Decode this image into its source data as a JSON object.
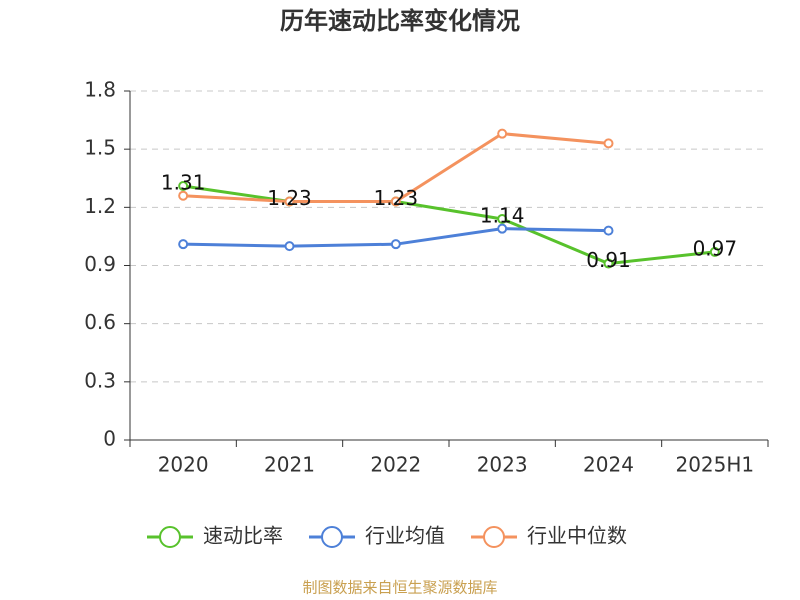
{
  "chart_data": {
    "type": "line",
    "title": "历年速动比率变化情况",
    "categories": [
      "2020",
      "2021",
      "2022",
      "2023",
      "2024",
      "2025H1"
    ],
    "series": [
      {
        "name": "速动比率",
        "color": "#58c22c",
        "values": [
          1.31,
          1.23,
          1.23,
          1.14,
          0.91,
          0.97
        ]
      },
      {
        "name": "行业均值",
        "color": "#4d80d8",
        "values": [
          1.01,
          1.0,
          1.01,
          1.09,
          1.08,
          null
        ]
      },
      {
        "name": "行业中位数",
        "color": "#f4925e",
        "values": [
          1.26,
          1.23,
          1.23,
          1.58,
          1.53,
          null
        ]
      }
    ],
    "data_labels_series": 0,
    "ylim": [
      0,
      1.8
    ],
    "yticks": [
      0,
      0.3,
      0.6,
      0.9,
      1.2,
      1.5,
      1.8
    ],
    "grid": true,
    "legend": "bottom",
    "source": "制图数据来自恒生聚源数据库"
  }
}
